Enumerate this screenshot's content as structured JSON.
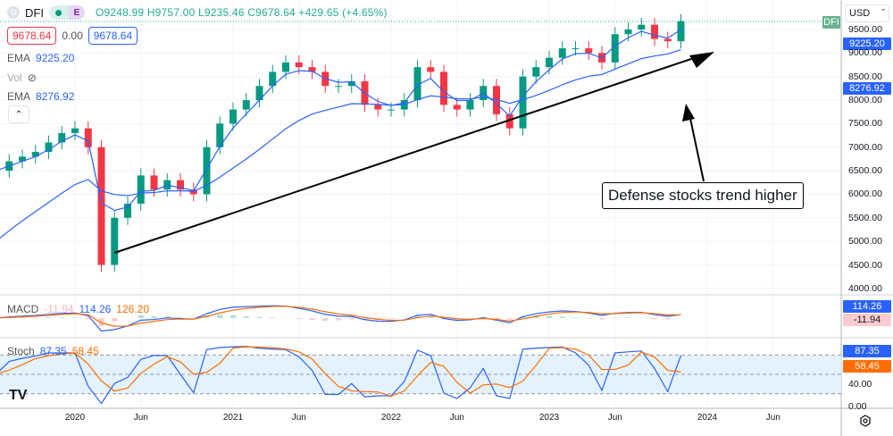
{
  "header": {
    "symbol": "DFI",
    "logo_letter": "D",
    "badge_letter": "E",
    "open": "O9248.99",
    "high": "H9757.00",
    "low": "L9235.46",
    "close": "C9678.64",
    "change": "+429.65 (+4.65%)",
    "bid": "9678.64",
    "spread": "0.00",
    "ask": "9678.64"
  },
  "indicators": {
    "ema1": {
      "label": "EMA",
      "value": "9225.20"
    },
    "vol": {
      "label": "Vol",
      "icon": "eye-off-icon"
    },
    "ema2": {
      "label": "EMA",
      "value": "8276.92"
    },
    "macd": {
      "label": "MACD",
      "hist": "-11.94",
      "macd": "114.26",
      "signal": "126.20"
    },
    "stoch": {
      "label": "Stoch",
      "k": "87.35",
      "d": "58.45"
    }
  },
  "currency": "USD",
  "symbol_tag": "DFI",
  "price_tags": {
    "ema1": "9225.20",
    "ema2": "8276.92",
    "macd": "114.26",
    "hist": "-11.94",
    "stoch_k": "87.35",
    "stoch_d": "58.45"
  },
  "annotation": "Defense stocks trend higher",
  "colors": {
    "up": "#089981",
    "down": "#f23645",
    "ema": "#2962ff",
    "macd_signal": "#ff6d00",
    "stoch_band": "#e3f2fd"
  },
  "chart_data": {
    "type": "candlestick",
    "price_axis": {
      "ticks": [
        "4000.00",
        "4500.00",
        "5000.00",
        "5500.00",
        "6000.00",
        "6500.00",
        "7000.00",
        "7500.00",
        "8000.00",
        "8500.00",
        "9000.00",
        "9500.00"
      ],
      "range": [
        3900,
        9800
      ]
    },
    "stoch_axis": {
      "ticks": [
        "0.00",
        "40.00"
      ],
      "range": [
        0,
        100
      ],
      "bands": [
        20,
        80
      ]
    },
    "time_axis": [
      "2020",
      "Jun",
      "2021",
      "Jun",
      "2022",
      "Jun",
      "2023",
      "Jun",
      "2024",
      "Jun"
    ],
    "time_axis_dates": [
      "2020-01",
      "2020-06",
      "2021-01",
      "2021-06",
      "2022-01",
      "2022-06",
      "2023-01",
      "2023-06",
      "2024-01",
      "2024-06"
    ],
    "start": "2019-07",
    "closes": [
      6500,
      6700,
      6800,
      6900,
      7100,
      7300,
      7400,
      7000,
      4500,
      5500,
      5800,
      6400,
      6100,
      6300,
      6100,
      6000,
      7000,
      7500,
      7800,
      8000,
      8300,
      8600,
      8800,
      8700,
      8600,
      8300,
      8300,
      8400,
      7900,
      7800,
      7800,
      8000,
      8700,
      8600,
      7900,
      7800,
      8000,
      8300,
      7700,
      7400,
      8500,
      8700,
      8900,
      9100,
      9100,
      9000,
      8800,
      9400,
      9500,
      9600,
      9300,
      9250,
      9678.64
    ],
    "trendline": {
      "from": {
        "date": "2020-04",
        "price": 4756
      },
      "to": {
        "date": "2024-01",
        "price": 8988
      }
    },
    "arrow": {
      "from": {
        "date": "2023-11",
        "price": 7600
      },
      "to": {
        "date": "2023-11",
        "price": 7600
      }
    }
  }
}
